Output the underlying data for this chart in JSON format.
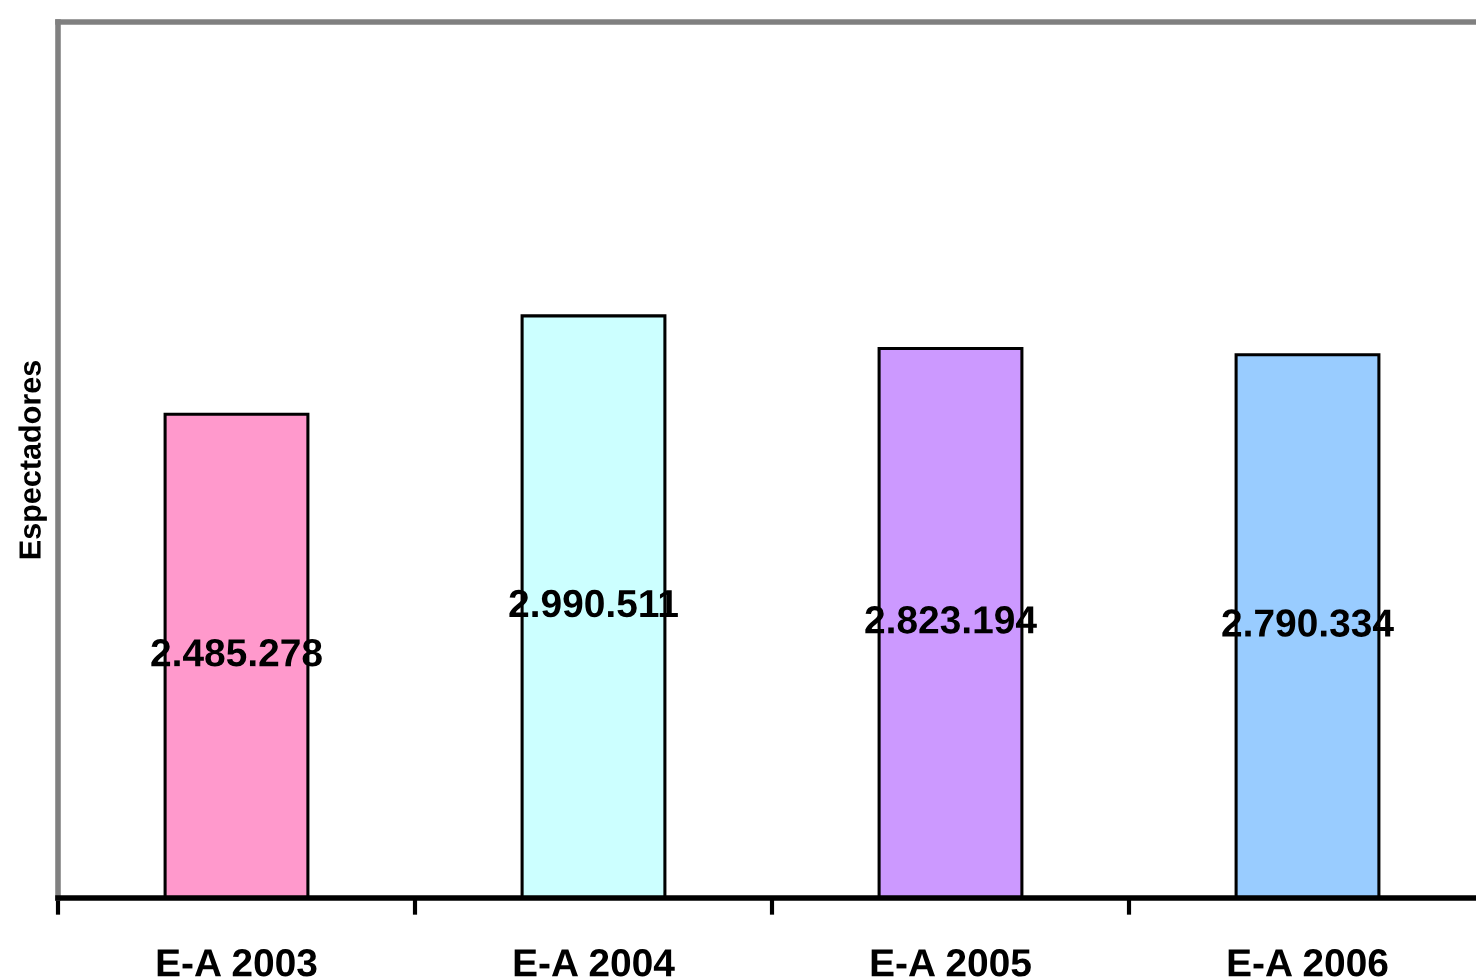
{
  "chart_data": {
    "type": "bar",
    "ylabel": "Espectadores",
    "categories": [
      "E-A 2003",
      "E-A 2004",
      "E-A 2005",
      "E-A 2006"
    ],
    "values": [
      2485278,
      2990511,
      2823194,
      2790334
    ],
    "colors": [
      "#ff99cc",
      "#ccffff",
      "#cc99ff",
      "#99ccff"
    ],
    "value_labels": [
      "2.485.278",
      "2.990.511",
      "2.823.194",
      "2.790.334"
    ],
    "ylim": [
      0,
      4500000
    ],
    "tick_labels": "x"
  }
}
